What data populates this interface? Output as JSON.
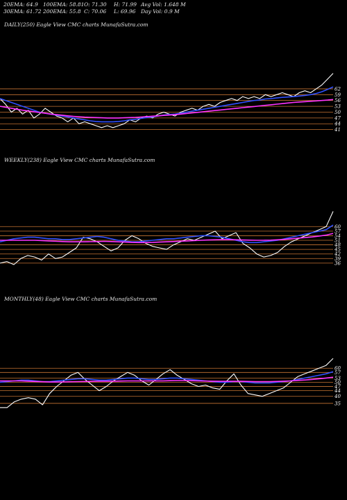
{
  "header": {
    "row1": [
      {
        "text": "20EMA: 64.9"
      },
      {
        "text": "100EMA: 58.81"
      },
      {
        "text": "O: 71.30"
      },
      {
        "text": "H: 71.99"
      },
      {
        "text": "Avg Vol: 1.648 M"
      }
    ],
    "row2": [
      {
        "text": "30EMA: 61.72"
      },
      {
        "text": "200EMA: 55.8"
      },
      {
        "text": "C: 70.06"
      },
      {
        "text": "L: 69.96"
      },
      {
        "text": "Day Vol: 0.9 M"
      }
    ]
  },
  "chart_data": [
    {
      "type": "line",
      "title": "DAILY(250) Eagle  View  CMC charts MunafaSutra.com",
      "ylim": [
        38,
        72
      ],
      "yticks": [
        "62",
        "59",
        "56",
        "53",
        "50",
        "47",
        "44",
        "41"
      ],
      "ytick_values": [
        62,
        59,
        56,
        53,
        50,
        47,
        44,
        41
      ],
      "grid_color": "#c87533",
      "series": [
        {
          "color": "#ffffff",
          "values": [
            57,
            54,
            50,
            52,
            49,
            51,
            47,
            49,
            52,
            50,
            48,
            47,
            45,
            47,
            44,
            45,
            44,
            43,
            42,
            43,
            42,
            43,
            44,
            46,
            45,
            47,
            48,
            47,
            49,
            50,
            49,
            48,
            50,
            51,
            52,
            51,
            53,
            54,
            53,
            55,
            56,
            57,
            56,
            58,
            57,
            58,
            57,
            59,
            58,
            59,
            60,
            59,
            58,
            60,
            61,
            60,
            62,
            64,
            67,
            70
          ]
        },
        {
          "color": "#3050ff",
          "values": [
            57,
            56,
            55,
            54,
            53,
            52,
            51,
            50,
            49.5,
            49,
            48.5,
            48,
            47.5,
            47,
            46.5,
            46,
            45.5,
            45.2,
            45,
            45,
            45,
            45.2,
            45.5,
            46,
            46.3,
            46.8,
            47.2,
            47.5,
            48,
            48.5,
            48.8,
            49,
            49.5,
            50,
            50.5,
            51,
            51.5,
            52,
            52.5,
            53,
            53.5,
            54,
            54.5,
            55,
            55.5,
            56,
            56.3,
            56.8,
            57,
            57.3,
            57.6,
            57.8,
            58,
            58.3,
            58.6,
            59,
            59.6,
            60.5,
            61.7,
            63
          ]
        },
        {
          "color": "#ff33ff",
          "values": [
            53,
            52.5,
            52,
            51.5,
            51,
            50.6,
            50.2,
            49.8,
            49.4,
            49,
            48.7,
            48.4,
            48.1,
            47.8,
            47.6,
            47.4,
            47.3,
            47.2,
            47.1,
            47,
            47,
            47,
            47.1,
            47.2,
            47.3,
            47.5,
            47.7,
            47.9,
            48.1,
            48.3,
            48.5,
            48.7,
            49,
            49.3,
            49.6,
            49.9,
            50.2,
            50.5,
            50.8,
            51.1,
            51.4,
            51.7,
            52,
            52.3,
            52.6,
            52.9,
            53.2,
            53.5,
            53.8,
            54.1,
            54.4,
            54.7,
            55,
            55.2,
            55.4,
            55.6,
            55.8,
            56,
            56.2,
            56.5
          ]
        }
      ]
    },
    {
      "type": "line",
      "title": "WEEKLY(238) Eagle  View  CMC charts MunafaSutra.com",
      "ylim": [
        30,
        72
      ],
      "yticks": [
        "60",
        "57",
        "54",
        "51",
        "48",
        "45",
        "42",
        "39",
        "36"
      ],
      "ytick_values": [
        60,
        57,
        54,
        51,
        48,
        45,
        42,
        39,
        36
      ],
      "grid_color": "#c87533",
      "series": [
        {
          "color": "#ffffff",
          "values": [
            36,
            37,
            35,
            39,
            41,
            40,
            38,
            42,
            39,
            40,
            43,
            46,
            53,
            52,
            50,
            47,
            44,
            46,
            51,
            54,
            52,
            49,
            47,
            46,
            45,
            48,
            50,
            52,
            51,
            53,
            55,
            57,
            52,
            54,
            56,
            49,
            46,
            42,
            40,
            41,
            43,
            47,
            50,
            52,
            54,
            56,
            58,
            60,
            70
          ]
        },
        {
          "color": "#3050ff",
          "values": [
            50,
            51,
            52,
            52.5,
            53,
            53,
            52.5,
            52,
            52,
            51.5,
            51.5,
            52,
            52.5,
            53,
            53.5,
            53,
            52,
            51,
            50.5,
            50,
            50,
            50.5,
            51,
            51.5,
            52,
            52,
            52.5,
            53,
            53.5,
            54,
            54,
            53.5,
            53,
            52,
            51,
            50,
            49.5,
            49.5,
            50,
            50.5,
            51,
            52,
            53,
            54,
            55,
            56,
            57,
            58,
            61
          ]
        },
        {
          "color": "#ff33ff",
          "values": [
            51,
            51,
            51,
            51,
            51,
            51,
            50.8,
            50.6,
            50.4,
            50.2,
            50,
            50,
            50,
            50.1,
            50.2,
            50.3,
            50.2,
            50,
            49.8,
            49.6,
            49.5,
            49.5,
            49.6,
            49.8,
            50,
            50.2,
            50.4,
            50.6,
            50.8,
            51,
            51.2,
            51.3,
            51.4,
            51.4,
            51.3,
            51.2,
            51.1,
            51,
            51,
            51.1,
            51.3,
            51.6,
            52,
            52.4,
            52.8,
            53.2,
            53.8,
            54.4,
            55.5
          ]
        }
      ]
    },
    {
      "type": "line",
      "title": "MONTHLY(48) Eagle  View  CMC charts MunafaSutra.com",
      "ylim": [
        28,
        70
      ],
      "yticks": [
        "60",
        "57",
        "53",
        "50",
        "47",
        "44",
        "40",
        "35"
      ],
      "ytick_values": [
        60,
        57,
        53,
        50,
        47,
        44,
        40,
        35
      ],
      "grid_color": "#c87533",
      "series": [
        {
          "color": "#ffffff",
          "values": [
            32,
            32,
            36,
            38,
            39,
            38,
            34,
            42,
            47,
            51,
            55,
            57,
            52,
            48,
            44,
            47,
            51,
            54,
            57,
            55,
            51,
            48,
            52,
            56,
            59,
            55,
            52,
            49,
            47,
            48,
            46,
            45,
            51,
            56,
            48,
            42,
            41,
            40,
            42,
            44,
            46,
            50,
            54,
            56,
            58,
            60,
            62,
            67
          ]
        },
        {
          "color": "#3050ff",
          "values": [
            50,
            50.5,
            51,
            51.5,
            51.5,
            51,
            50.5,
            50.5,
            51,
            51.5,
            52,
            52.5,
            52.5,
            52,
            51.5,
            51.5,
            52,
            52.5,
            53,
            53,
            52.5,
            52,
            52,
            52.5,
            53,
            53,
            52.5,
            52,
            51.5,
            51,
            50.5,
            50,
            50,
            50.5,
            50.5,
            50,
            49.5,
            49.5,
            49.5,
            50,
            50.5,
            51,
            52,
            53,
            54,
            55,
            56,
            57.5
          ]
        },
        {
          "color": "#ff33ff",
          "values": [
            51,
            51,
            51,
            51,
            50.8,
            50.6,
            50.4,
            50.2,
            50.2,
            50.3,
            50.4,
            50.5,
            50.6,
            50.7,
            50.8,
            50.8,
            50.8,
            50.9,
            51,
            51,
            51,
            51,
            51,
            51,
            51.1,
            51.2,
            51.2,
            51.1,
            51,
            50.9,
            50.8,
            50.7,
            50.7,
            50.7,
            50.7,
            50.6,
            50.5,
            50.5,
            50.5,
            50.6,
            50.8,
            51,
            51.3,
            51.6,
            52,
            52.5,
            53,
            53.6
          ]
        }
      ]
    }
  ]
}
